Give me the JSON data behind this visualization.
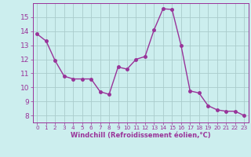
{
  "x": [
    0,
    1,
    2,
    3,
    4,
    5,
    6,
    7,
    8,
    9,
    10,
    11,
    12,
    13,
    14,
    15,
    16,
    17,
    18,
    19,
    20,
    21,
    22,
    23
  ],
  "y": [
    13.8,
    13.3,
    11.9,
    10.8,
    10.6,
    10.6,
    10.6,
    9.7,
    9.5,
    11.45,
    11.3,
    12.0,
    12.2,
    14.1,
    15.6,
    15.55,
    13.0,
    9.75,
    9.6,
    8.7,
    8.4,
    8.3,
    8.3,
    8.0
  ],
  "line_color": "#993399",
  "marker": "o",
  "marker_size": 2.5,
  "linewidth": 1.0,
  "bg_color": "#cceeee",
  "grid_color": "#aacccc",
  "xlabel": "Windchill (Refroidissement éolien,°C)",
  "ylim": [
    7.5,
    16.0
  ],
  "xlim": [
    -0.5,
    23.5
  ],
  "yticks": [
    8,
    9,
    10,
    11,
    12,
    13,
    14,
    15
  ],
  "xticks": [
    0,
    1,
    2,
    3,
    4,
    5,
    6,
    7,
    8,
    9,
    10,
    11,
    12,
    13,
    14,
    15,
    16,
    17,
    18,
    19,
    20,
    21,
    22,
    23
  ],
  "tick_color": "#993399",
  "label_color": "#993399",
  "xlabel_fontsize": 6.0,
  "ytick_fontsize": 6.5,
  "xtick_fontsize": 5.2
}
